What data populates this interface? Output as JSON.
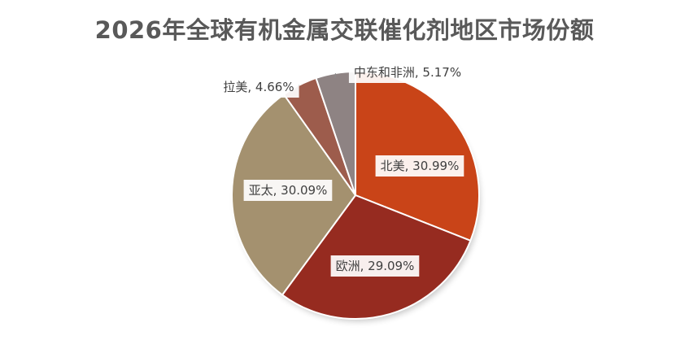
{
  "chart_data": {
    "type": "pie",
    "title": "2026年全球有机金属交联催化剂地区市场份额",
    "slices": [
      {
        "name": "北美",
        "value": 30.99,
        "label": "北美, 30.99%",
        "color": "#c94418"
      },
      {
        "name": "欧洲",
        "value": 29.09,
        "label": "欧洲, 29.09%",
        "color": "#962b20"
      },
      {
        "name": "亚太",
        "value": 30.09,
        "label": "亚太, 30.09%",
        "color": "#a4916f"
      },
      {
        "name": "拉美",
        "value": 4.66,
        "label": "拉美, 4.66%",
        "color": "#9d5c4c"
      },
      {
        "name": "中东和非洲",
        "value": 5.17,
        "label": "中东和非洲, 5.17%",
        "color": "#8e8383"
      }
    ],
    "legend": "none"
  }
}
